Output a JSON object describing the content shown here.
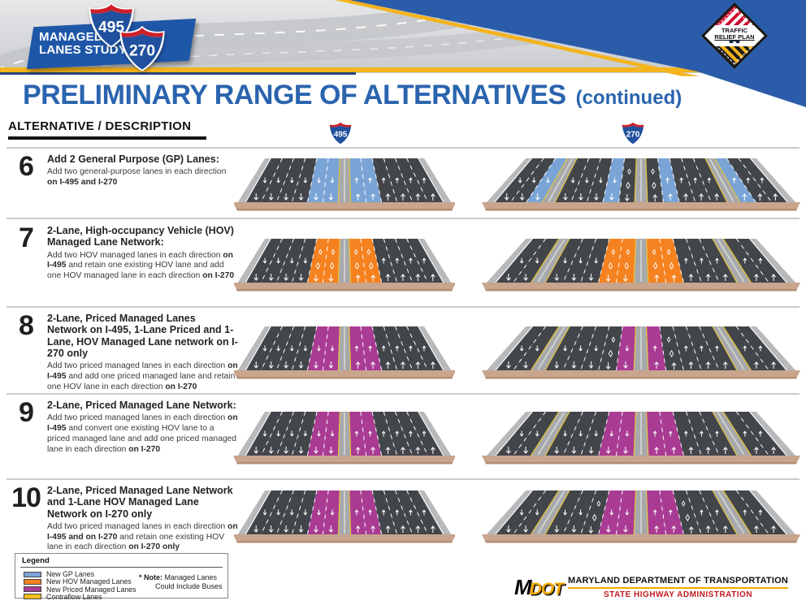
{
  "header": {
    "logo": {
      "title_line1": "MANAGED",
      "title_line2": "LANES STUDY",
      "shield_top": "495",
      "shield_bottom": "270"
    },
    "badge": {
      "line1": "TRAFFIC",
      "line2": "RELIEF PLAN"
    }
  },
  "title": {
    "main": "PRELIMINARY RANGE OF ALTERNATIVES",
    "suffix": "(continued)"
  },
  "table": {
    "col_header": "ALTERNATIVE / DESCRIPTION",
    "shield_495": "495",
    "shield_270": "270"
  },
  "alternatives": [
    {
      "num": "6",
      "heading": "Add 2 General Purpose (GP) Lanes:",
      "body": [
        {
          "t": "Add two general-purpose lanes in each direction "
        },
        {
          "t": "on I-495 and I-270",
          "b": true
        }
      ],
      "lanes_i495": [
        "sh",
        "d",
        "d",
        "d",
        "d",
        "gp",
        "gp",
        "med",
        "gp",
        "gp",
        "d",
        "d",
        "d",
        "d",
        "sh"
      ],
      "lanes_i270": [
        "sh",
        "d",
        "d",
        "gp",
        "med",
        "d",
        "d",
        "d",
        "gp",
        "d*",
        "med",
        "d*",
        "gp",
        "d",
        "d",
        "d",
        "med",
        "gp",
        "d",
        "d",
        "sh"
      ]
    },
    {
      "num": "7",
      "heading": "2-Lane, High-occupancy Vehicle (HOV) Managed Lane Network:",
      "body": [
        {
          "t": "Add two HOV managed lanes in each direction "
        },
        {
          "t": "on I-495",
          "b": true
        },
        {
          "t": " and retain one existing HOV lane and add one HOV managed lane in each direction "
        },
        {
          "t": "on I-270",
          "b": true
        }
      ],
      "lanes_i495": [
        "sh",
        "d",
        "d",
        "d",
        "d",
        "hov*",
        "hov*",
        "med",
        "hov*",
        "hov*",
        "d",
        "d",
        "d",
        "d",
        "sh"
      ],
      "lanes_i270": [
        "sh",
        "d",
        "d",
        "med",
        "d",
        "d",
        "d",
        "hov*",
        "hov*",
        "med",
        "hov*",
        "hov*",
        "d",
        "d",
        "d",
        "med",
        "d",
        "d",
        "sh"
      ]
    },
    {
      "num": "8",
      "heading": "2-Lane, Priced Managed Lanes Network on I-495, 1-Lane Priced and 1-Lane, HOV Managed Lane network on I-270 only",
      "body": [
        {
          "t": "Add two priced managed lanes in each direction "
        },
        {
          "t": "on I-495",
          "b": true
        },
        {
          "t": " and add one priced managed lane and retain one HOV lane in each direction "
        },
        {
          "t": "on I-270",
          "b": true
        }
      ],
      "lanes_i495": [
        "sh",
        "d",
        "d",
        "d",
        "d",
        "prc",
        "prc",
        "med",
        "prc",
        "prc",
        "d",
        "d",
        "d",
        "d",
        "sh"
      ],
      "lanes_i270": [
        "sh",
        "d",
        "d",
        "med",
        "d",
        "d",
        "d",
        "d*",
        "prc",
        "med",
        "prc",
        "d*",
        "d",
        "d",
        "d",
        "med",
        "d",
        "d",
        "sh"
      ]
    },
    {
      "num": "9",
      "heading": "2-Lane, Priced Managed Lane Network:",
      "body": [
        {
          "t": "Add two priced managed lanes in each direction "
        },
        {
          "t": "on I-495",
          "b": true
        },
        {
          "t": " and convert one existing HOV lane to a priced managed lane and add one priced managed lane in each direction "
        },
        {
          "t": "on I-270",
          "b": true
        }
      ],
      "lanes_i495": [
        "sh",
        "d",
        "d",
        "d",
        "d",
        "prc",
        "prc",
        "med",
        "prc",
        "prc",
        "d",
        "d",
        "d",
        "d",
        "sh"
      ],
      "lanes_i270": [
        "sh",
        "d",
        "d",
        "med",
        "d",
        "d",
        "d",
        "prc",
        "prc",
        "med",
        "prc",
        "prc",
        "d",
        "d",
        "d",
        "med",
        "d",
        "d",
        "sh"
      ]
    },
    {
      "num": "10",
      "heading": "2-Lane, Priced Managed Lane Network and 1-Lane HOV Managed Lane Network on I-270 only",
      "body": [
        {
          "t": "Add two priced managed lanes in each direction "
        },
        {
          "t": "on I-495 and on I-270",
          "b": true
        },
        {
          "t": " and retain one existing HOV lane in each direction "
        },
        {
          "t": "on I-270 only",
          "b": true
        }
      ],
      "lanes_i495": [
        "sh",
        "d",
        "d",
        "d",
        "d",
        "prc",
        "prc",
        "med",
        "prc",
        "prc",
        "d",
        "d",
        "d",
        "d",
        "sh"
      ],
      "lanes_i270": [
        "sh",
        "d",
        "d",
        "med",
        "d",
        "d",
        "d*",
        "prc",
        "prc",
        "med",
        "prc",
        "prc",
        "d*",
        "d",
        "d",
        "med",
        "d",
        "d",
        "sh"
      ]
    }
  ],
  "legend": {
    "title": "Legend",
    "items": [
      {
        "label": "New GP Lanes",
        "color": "#7aa4d6"
      },
      {
        "label": "New HOV Managed Lanes",
        "color": "#f58220"
      },
      {
        "label": "New Priced Managed Lanes",
        "color": "#a93b93"
      },
      {
        "label": "Contraflow Lanes",
        "color": "#f7c01d"
      }
    ],
    "note_bold": "* Note:",
    "note_line1": " Managed Lanes",
    "note_line2": "Could Include Buses"
  },
  "footer": {
    "logo_m": "M",
    "logo_dot": "DOT",
    "agency": "MARYLAND DEPARTMENT OF TRANSPORTATION",
    "division": "STATE HIGHWAY ADMINISTRATION"
  },
  "colors": {
    "accent_blue": "#2a64ae",
    "header_blue": "#2b5ca9",
    "gold": "#f5b31c",
    "asphalt": "#42464a",
    "shoulder": "#b7b9ba",
    "median": "#a7a9ab",
    "gp": "#7aa4d6",
    "hov": "#f58220",
    "prc": "#a93b93",
    "base_tan": "#c9a58d",
    "lane_line": "#ffffff",
    "edge_yellow": "#e9c53d"
  }
}
